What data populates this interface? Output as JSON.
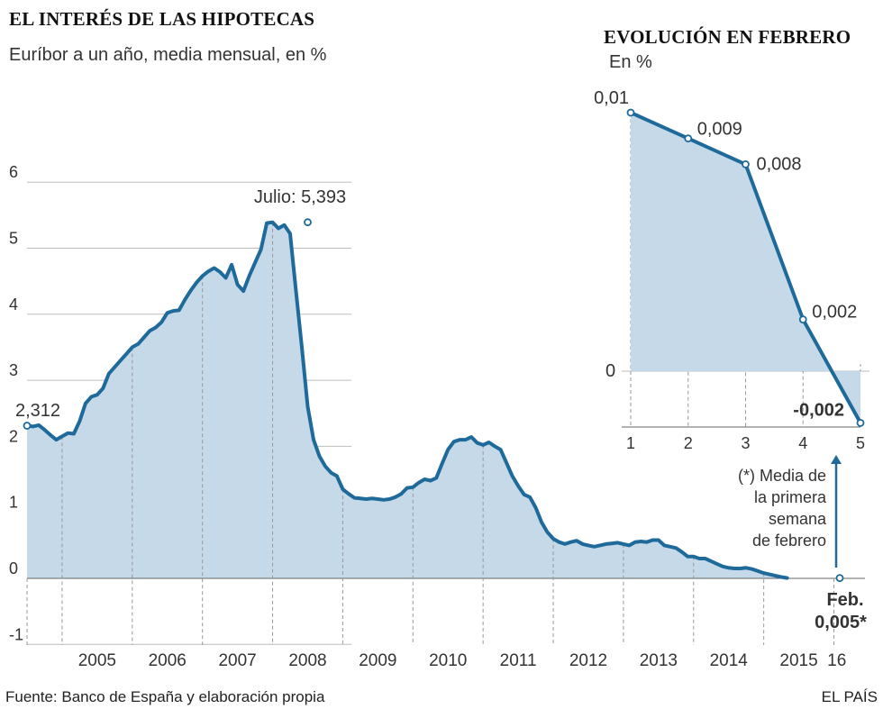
{
  "main": {
    "title": "EL INTERÉS DE LAS HIPOTECAS",
    "subtitle": "Euríbor a un año, media mensual, en %"
  },
  "inset": {
    "title": "EVOLUCIÓN EN FEBRERO",
    "subtitle": "En %"
  },
  "annotations": {
    "peak": "Julio: 5,393",
    "start": "2,312",
    "footnote": [
      "(*) Media de",
      "la primera",
      "semana",
      "de febrero"
    ],
    "final_month": "Feb.",
    "final_value": "0,005*"
  },
  "footer": {
    "source": "Fuente: Banco de España y elaboración propia",
    "brand": "EL PAÍS"
  },
  "colors": {
    "line": "#1e6a9b",
    "fill": "#c6d9e8",
    "grid": "#bdbdbd",
    "axis": "#555555"
  },
  "chart_data": [
    {
      "type": "area",
      "title": "EL INTERÉS DE LAS HIPOTECAS",
      "subtitle": "Euríbor a un año, media mensual, en %",
      "ylim": [
        -1,
        6
      ],
      "yticks": [
        "-1",
        "0",
        "1",
        "2",
        "3",
        "4",
        "5",
        "6"
      ],
      "xticks": [
        "2005",
        "2006",
        "2007",
        "2008",
        "2009",
        "2010",
        "2011",
        "2012",
        "2013",
        "2014",
        "2015",
        "16"
      ],
      "x_start": "2004-07",
      "x_end": "2016-02",
      "values": [
        2.312,
        2.3,
        2.32,
        2.25,
        2.17,
        2.1,
        2.15,
        2.2,
        2.19,
        2.38,
        2.65,
        2.75,
        2.78,
        2.88,
        3.1,
        3.2,
        3.3,
        3.4,
        3.5,
        3.55,
        3.65,
        3.75,
        3.8,
        3.88,
        4.02,
        4.05,
        4.06,
        4.22,
        4.36,
        4.48,
        4.58,
        4.65,
        4.7,
        4.64,
        4.55,
        4.75,
        4.45,
        4.35,
        4.58,
        4.78,
        4.98,
        5.38,
        5.393,
        5.3,
        5.35,
        5.22,
        4.35,
        3.5,
        2.6,
        2.1,
        1.85,
        1.7,
        1.6,
        1.55,
        1.35,
        1.28,
        1.22,
        1.21,
        1.2,
        1.21,
        1.2,
        1.19,
        1.2,
        1.23,
        1.28,
        1.37,
        1.38,
        1.45,
        1.5,
        1.48,
        1.52,
        1.74,
        1.95,
        2.07,
        2.1,
        2.1,
        2.14,
        2.05,
        2.02,
        2.06,
        2.0,
        1.95,
        1.75,
        1.55,
        1.4,
        1.27,
        1.23,
        1.07,
        0.85,
        0.7,
        0.6,
        0.55,
        0.52,
        0.55,
        0.57,
        0.52,
        0.5,
        0.48,
        0.5,
        0.52,
        0.53,
        0.54,
        0.52,
        0.5,
        0.55,
        0.56,
        0.55,
        0.58,
        0.58,
        0.5,
        0.48,
        0.46,
        0.4,
        0.33,
        0.33,
        0.3,
        0.3,
        0.26,
        0.22,
        0.18,
        0.16,
        0.15,
        0.15,
        0.16,
        0.14,
        0.11,
        0.08,
        0.06,
        0.04,
        0.02,
        0.005
      ],
      "highlight": [
        {
          "x": "2004-07",
          "y": 2.312,
          "label": "2,312"
        },
        {
          "x": "2008-07",
          "y": 5.393,
          "label": "Julio: 5,393"
        },
        {
          "x": "2016-02",
          "y": 0.005,
          "label": "0,005*"
        }
      ],
      "grid": true
    },
    {
      "type": "area",
      "title": "EVOLUCIÓN EN FEBRERO",
      "ylabel": "En %",
      "x": [
        1,
        2,
        3,
        4,
        5
      ],
      "values": [
        0.01,
        0.009,
        0.008,
        0.002,
        -0.002
      ],
      "labels": [
        "0,01",
        "0,009",
        "0,008",
        "0,002",
        "-0,002"
      ],
      "yticks": [
        "0"
      ],
      "ylim": [
        -0.002,
        0.01
      ],
      "grid": true
    }
  ]
}
